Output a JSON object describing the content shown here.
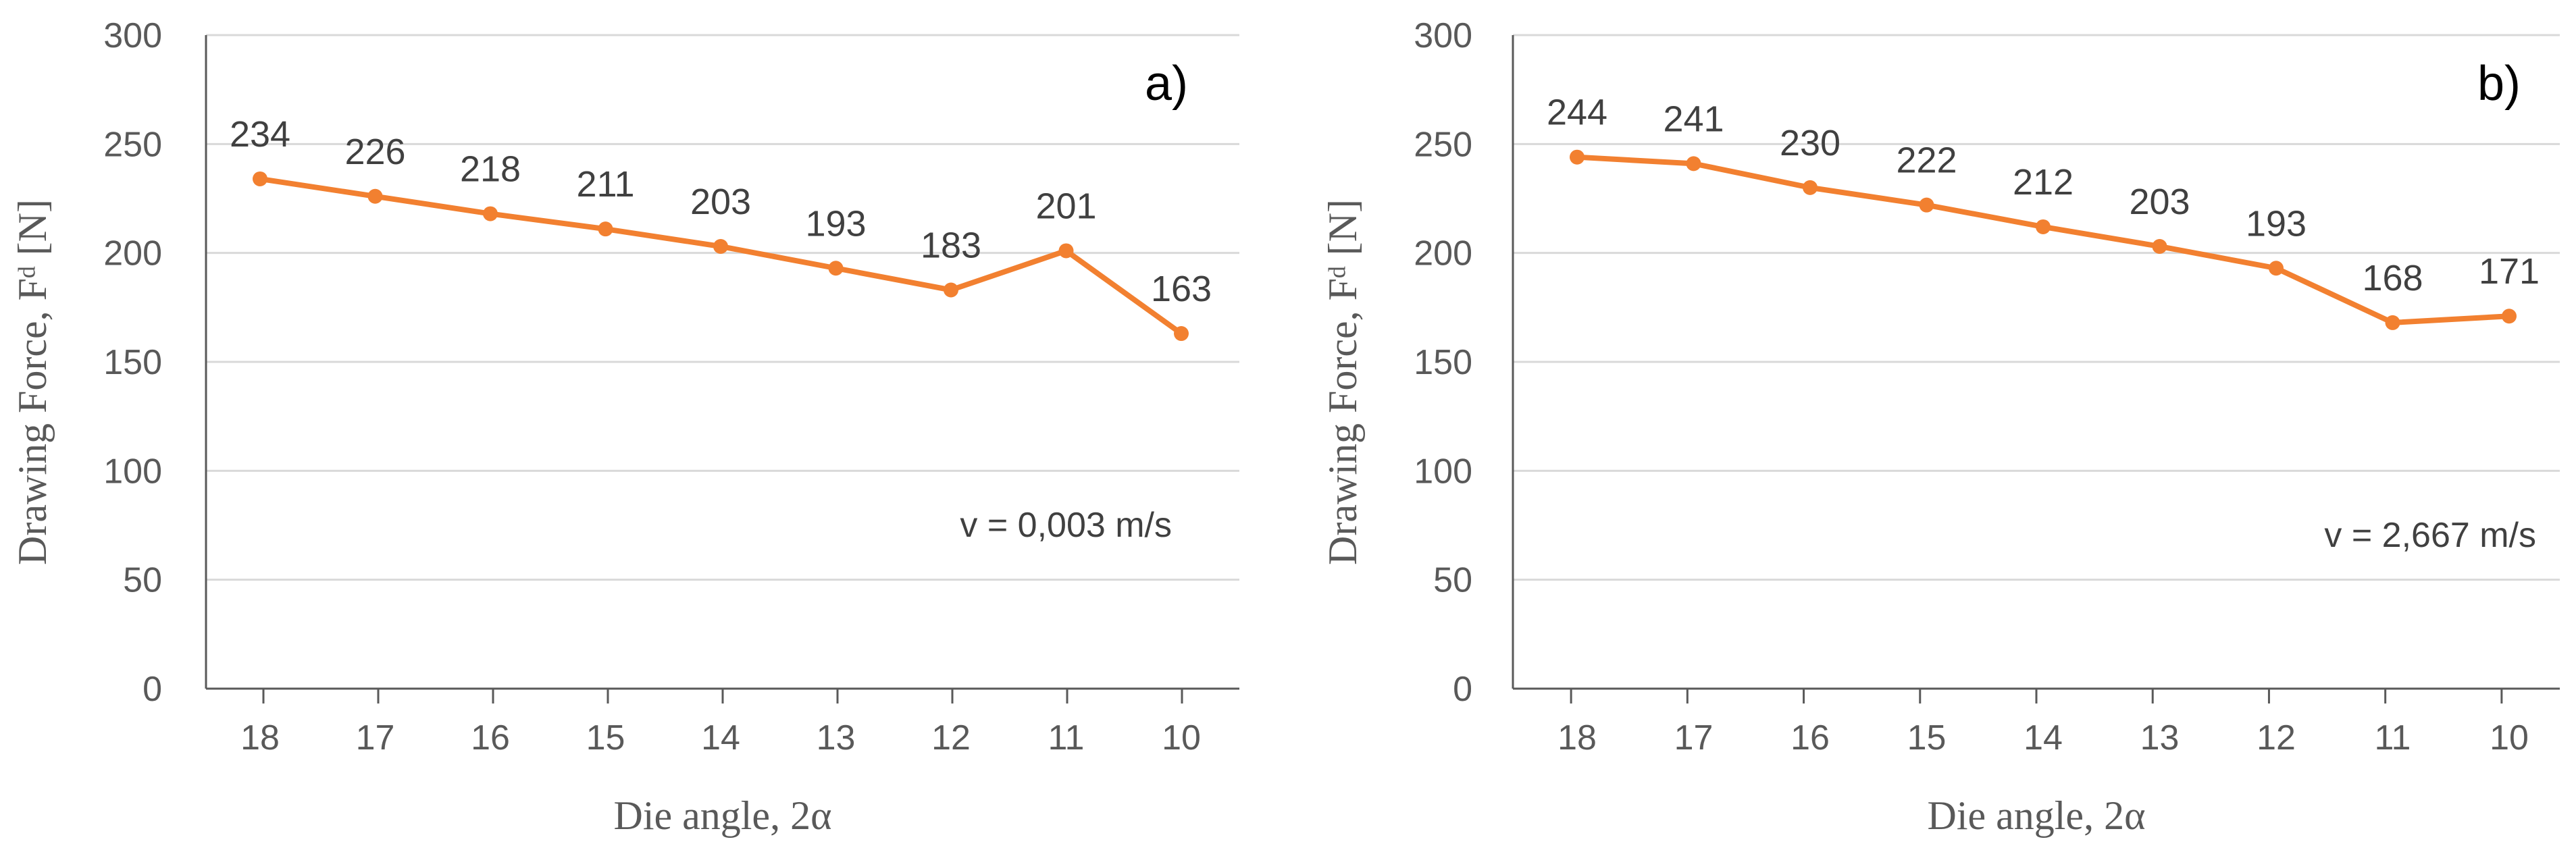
{
  "chart_data": [
    {
      "type": "line",
      "panel_label": "a)",
      "annotation": "v = 0,003 m/s",
      "xlabel": "Die angle, 2α",
      "ylabel": "Drawing Force, Fᵈ [N]",
      "categories": [
        "18",
        "17",
        "16",
        "15",
        "14",
        "13",
        "12",
        "11",
        "10"
      ],
      "series": [
        {
          "name": "Drawing Force",
          "values": [
            234,
            226,
            218,
            211,
            203,
            193,
            183,
            201,
            163
          ],
          "color": "#f28030"
        }
      ],
      "ylim": [
        0,
        300
      ],
      "yticks": [
        "0",
        "50",
        "100",
        "150",
        "200",
        "250",
        "300"
      ],
      "grid": true
    },
    {
      "type": "line",
      "panel_label": "b)",
      "annotation": "v = 2,667 m/s",
      "xlabel": "Die angle, 2α",
      "ylabel": "Drawing Force, Fᵈ [N]",
      "categories": [
        "18",
        "17",
        "16",
        "15",
        "14",
        "13",
        "12",
        "11",
        "10"
      ],
      "series": [
        {
          "name": "Drawing Force",
          "values": [
            244,
            241,
            230,
            222,
            212,
            203,
            193,
            168,
            171
          ],
          "color": "#f28030"
        }
      ],
      "ylim": [
        0,
        300
      ],
      "yticks": [
        "0",
        "50",
        "100",
        "150",
        "200",
        "250",
        "300"
      ],
      "grid": true
    }
  ]
}
